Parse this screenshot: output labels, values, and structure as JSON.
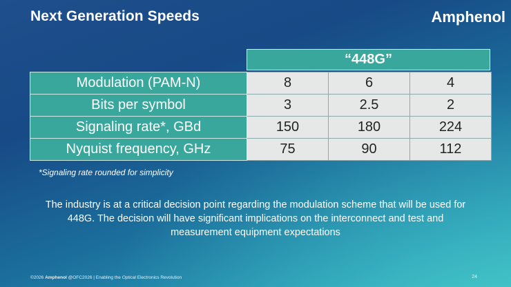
{
  "slide": {
    "title": "Next Generation Speeds",
    "brand": "Amphenol",
    "table": {
      "header": "“448G”",
      "rows": [
        {
          "label": "Modulation (PAM-N)",
          "values": [
            "8",
            "6",
            "4"
          ]
        },
        {
          "label": "Bits per symbol",
          "values": [
            "3",
            "2.5",
            "2"
          ]
        },
        {
          "label": "Signaling rate*, GBd",
          "values": [
            "150",
            "180",
            "224"
          ]
        },
        {
          "label": "Nyquist frequency, GHz",
          "values": [
            "75",
            "90",
            "112"
          ]
        }
      ]
    },
    "footnote": "*Signaling rate rounded for simplicity",
    "body": "The industry is at a critical decision point regarding the modulation scheme that will be used for 448G. The decision will have significant implications on the interconnect and test and measurement equipment expectations",
    "footer": {
      "copyright": "©2026",
      "company": "Amphenol",
      "event": "@OFC2026 | Enabling the",
      "emph": "Optical",
      "tail": "Electronics Revolution"
    },
    "page_number": "24"
  },
  "colors": {
    "accent": "#3aa79c",
    "cell_bg": "#e6e8e8"
  }
}
